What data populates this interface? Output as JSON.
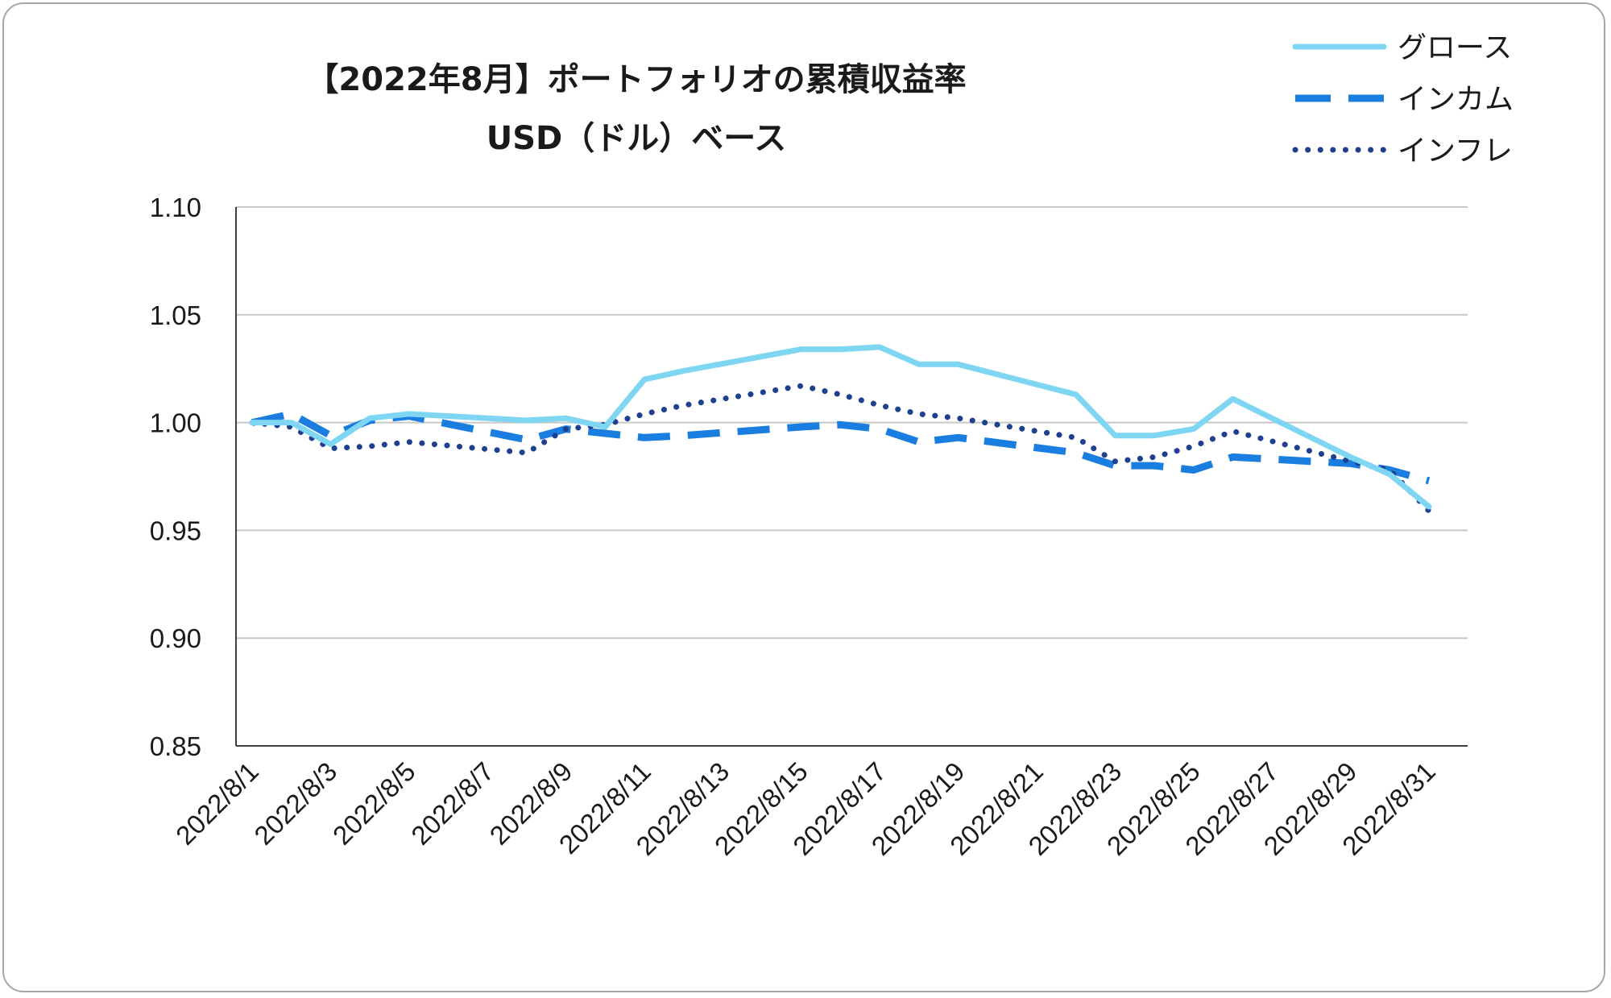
{
  "chart_data": {
    "type": "line",
    "title": "【2022年8月】ポートフォリオの累積収益率",
    "subtitle": "USD（ドル）ベース",
    "xlabel": "",
    "ylabel": "",
    "ylim": [
      0.85,
      1.1
    ],
    "yticks": [
      "1.10",
      "1.05",
      "1.00",
      "0.95",
      "0.90",
      "0.85"
    ],
    "ytick_values": [
      1.1,
      1.05,
      1.0,
      0.95,
      0.9,
      0.85
    ],
    "x": [
      "2022/8/1",
      "2022/8/2",
      "2022/8/3",
      "2022/8/4",
      "2022/8/5",
      "2022/8/8",
      "2022/8/9",
      "2022/8/10",
      "2022/8/11",
      "2022/8/12",
      "2022/8/15",
      "2022/8/16",
      "2022/8/17",
      "2022/8/18",
      "2022/8/19",
      "2022/8/22",
      "2022/8/23",
      "2022/8/24",
      "2022/8/25",
      "2022/8/26",
      "2022/8/29",
      "2022/8/30",
      "2022/8/31"
    ],
    "x_day_index": [
      0,
      1,
      2,
      3,
      4,
      7,
      8,
      9,
      10,
      11,
      14,
      15,
      16,
      17,
      18,
      21,
      22,
      23,
      24,
      25,
      28,
      29,
      30
    ],
    "xtick_labels": [
      "2022/8/1",
      "2022/8/3",
      "2022/8/5",
      "2022/8/7",
      "2022/8/9",
      "2022/8/11",
      "2022/8/13",
      "2022/8/15",
      "2022/8/17",
      "2022/8/19",
      "2022/8/21",
      "2022/8/23",
      "2022/8/25",
      "2022/8/27",
      "2022/8/29",
      "2022/8/31"
    ],
    "grid": true,
    "legend_position": "top-right",
    "series": [
      {
        "name": "グロース",
        "style": "solid",
        "color": "#7fd6f2",
        "values": [
          1.0,
          1.0,
          0.99,
          1.002,
          1.004,
          1.001,
          1.002,
          0.998,
          1.02,
          1.024,
          1.034,
          1.034,
          1.035,
          1.027,
          1.027,
          1.013,
          0.994,
          0.994,
          0.997,
          1.011,
          0.984,
          0.976,
          0.961
        ]
      },
      {
        "name": "インカム",
        "style": "dashed",
        "color": "#1a7de0",
        "values": [
          1.0,
          1.004,
          0.994,
          1.001,
          1.003,
          0.992,
          0.997,
          0.995,
          0.993,
          0.994,
          0.998,
          0.999,
          0.997,
          0.991,
          0.993,
          0.986,
          0.98,
          0.98,
          0.978,
          0.984,
          0.981,
          0.978,
          0.973
        ]
      },
      {
        "name": "インフレ",
        "style": "dotted",
        "color": "#1f3f8f",
        "values": [
          1.0,
          0.998,
          0.988,
          0.989,
          0.991,
          0.986,
          0.997,
          0.999,
          1.004,
          1.008,
          1.017,
          1.013,
          1.008,
          1.004,
          1.002,
          0.993,
          0.982,
          0.984,
          0.989,
          0.996,
          0.982,
          0.978,
          0.959
        ]
      }
    ]
  }
}
